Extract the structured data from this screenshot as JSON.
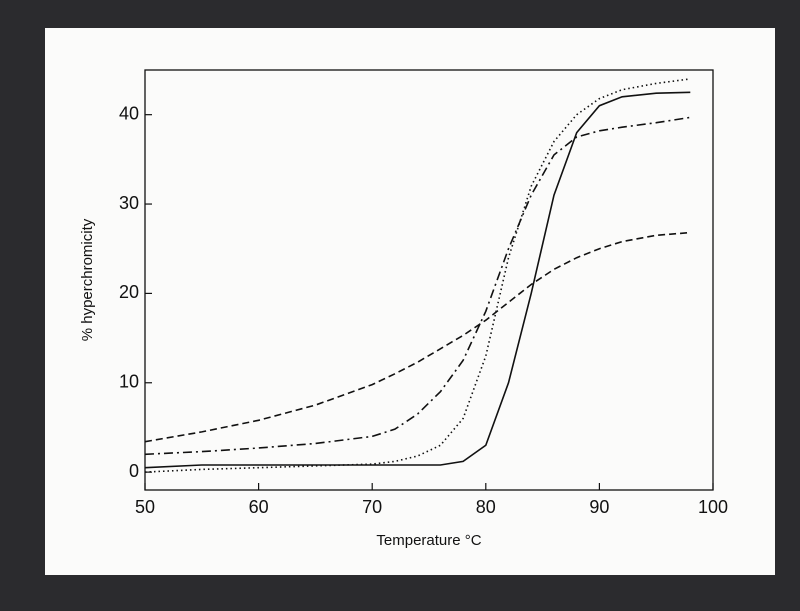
{
  "chart_data": {
    "type": "line",
    "xlabel": "Temperature °C",
    "ylabel": "% hyperchromicity",
    "x": [
      50,
      55,
      60,
      65,
      70,
      72,
      74,
      76,
      78,
      80,
      82,
      84,
      86,
      88,
      90,
      92,
      95,
      98
    ],
    "series": [
      {
        "color": "#111111",
        "dash": "solid",
        "values": [
          0.5,
          0.8,
          0.8,
          0.8,
          0.8,
          0.8,
          0.8,
          0.8,
          1.2,
          3,
          10,
          20,
          31,
          38,
          41,
          42,
          42.4,
          42.5
        ]
      },
      {
        "color": "#111111",
        "dash": "dotted",
        "values": [
          0,
          0.3,
          0.5,
          0.7,
          0.9,
          1.2,
          1.8,
          3,
          6,
          13,
          24,
          32,
          37,
          40,
          41.8,
          42.8,
          43.5,
          44
        ]
      },
      {
        "color": "#111111",
        "dash": "dashdot",
        "values": [
          2,
          2.3,
          2.7,
          3.2,
          4,
          4.8,
          6.5,
          9,
          12.5,
          18,
          25,
          31,
          35.5,
          37.5,
          38.2,
          38.6,
          39.1,
          39.7
        ]
      },
      {
        "color": "#111111",
        "dash": "dashed",
        "values": [
          3.4,
          4.5,
          5.8,
          7.5,
          9.8,
          11,
          12.3,
          13.8,
          15.3,
          17,
          19,
          21,
          22.7,
          24,
          25,
          25.8,
          26.5,
          26.8
        ]
      }
    ],
    "xlim": [
      50,
      100
    ],
    "xticks": [
      50,
      60,
      70,
      80,
      90,
      100
    ],
    "ylim": [
      -2,
      45
    ],
    "yticks": [
      0,
      10,
      20,
      30,
      40
    ],
    "grid": false
  }
}
